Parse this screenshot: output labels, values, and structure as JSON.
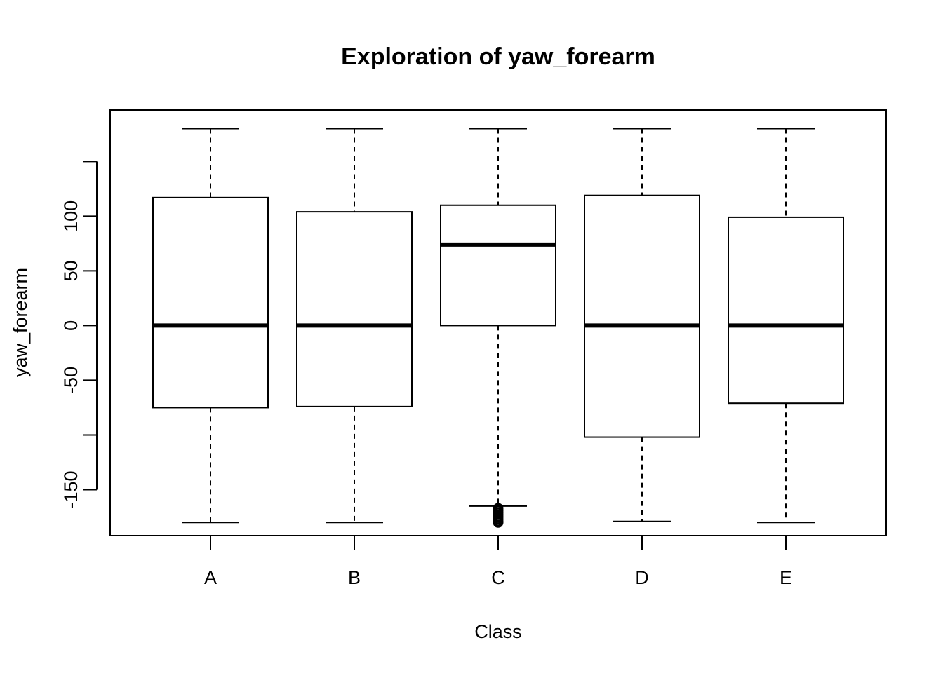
{
  "chart_data": {
    "type": "boxplot",
    "title": "Exploration of  yaw_forearm",
    "xlabel": "Class",
    "ylabel": "yaw_forearm",
    "ylim": [
      -192,
      197
    ],
    "y_ticks": [
      -150,
      -100,
      -50,
      0,
      50,
      100,
      150
    ],
    "y_tick_labels": [
      "-150",
      "",
      "-50",
      "0",
      "50",
      "100",
      ""
    ],
    "categories": [
      "A",
      "B",
      "C",
      "D",
      "E"
    ],
    "boxes": [
      {
        "category": "A",
        "whisker_low": -180,
        "q1": -75,
        "median": 0,
        "q3": 117,
        "whisker_high": 180,
        "outliers": []
      },
      {
        "category": "B",
        "whisker_low": -180,
        "q1": -74,
        "median": 0,
        "q3": 104,
        "whisker_high": 180,
        "outliers": []
      },
      {
        "category": "C",
        "whisker_low": -165,
        "q1": 0,
        "median": 74,
        "q3": 110,
        "whisker_high": 180,
        "outliers": [
          -167,
          -169,
          -171,
          -173,
          -175,
          -177,
          -179,
          -180
        ]
      },
      {
        "category": "D",
        "whisker_low": -179,
        "q1": -102,
        "median": 0,
        "q3": 119,
        "whisker_high": 180,
        "outliers": []
      },
      {
        "category": "E",
        "whisker_low": -180,
        "q1": -71,
        "median": 0,
        "q3": 99,
        "whisker_high": 180,
        "outliers": []
      }
    ],
    "grid": false,
    "legend": "none"
  }
}
